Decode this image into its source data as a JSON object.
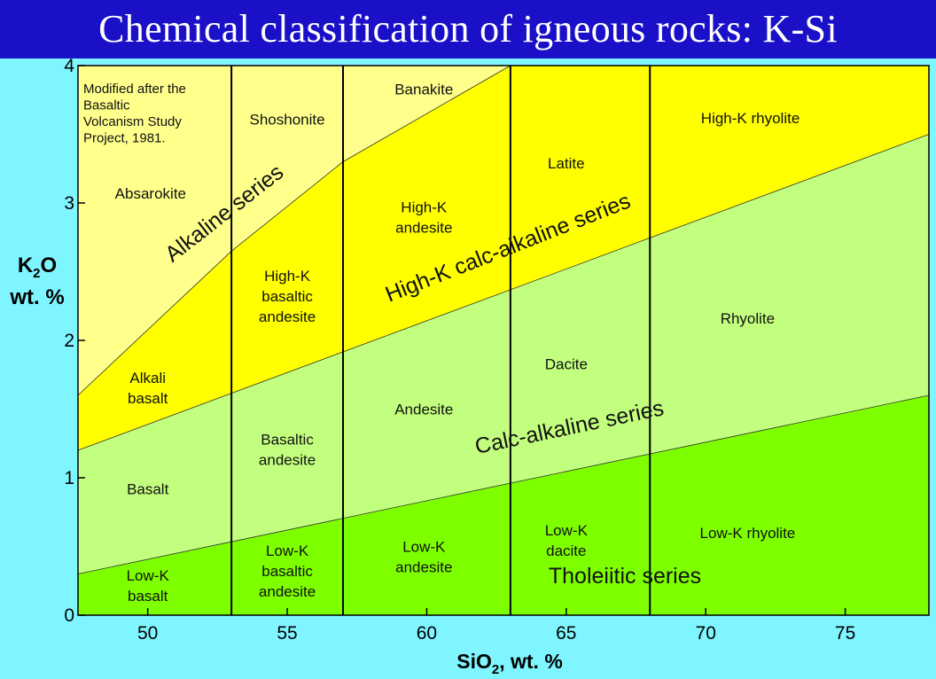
{
  "title": "Chemical classification of igneous rocks: K-Si",
  "x_axis": {
    "label_main": "SiO",
    "label_sub": "2",
    "label_tail": ", wt. %",
    "ticks": [
      "50",
      "55",
      "60",
      "65",
      "70",
      "75"
    ]
  },
  "y_axis": {
    "label_line1_main": "K",
    "label_line1_sub": "2",
    "label_line1_tail": "O",
    "label_line2": "wt. %",
    "ticks": [
      "0",
      "1",
      "2",
      "3",
      "4"
    ]
  },
  "note": [
    "Modified after the",
    "Basaltic",
    "Volcanism Study",
    "Project, 1981."
  ],
  "series_labels": {
    "alkaline": "Alkaline series",
    "high_k": "High-K calc-alkaline series",
    "calc_alkaline": "Calc-alkaline series",
    "tholeiitic": "Tholeiitic series"
  },
  "chart_data": {
    "type": "classification-diagram",
    "x_range": [
      47.5,
      78
    ],
    "y_range": [
      0,
      4
    ],
    "vertical_dividers_sio2": [
      53,
      57,
      63,
      68
    ],
    "boundaries": {
      "low_k_medium_k": [
        [
          47.5,
          0.3
        ],
        [
          78,
          1.6
        ]
      ],
      "medium_k_high_k": [
        [
          47.5,
          1.2
        ],
        [
          78,
          3.5
        ]
      ],
      "high_k_shoshonite": [
        [
          47.5,
          1.6
        ],
        [
          53,
          2.65
        ],
        [
          57,
          3.3
        ],
        [
          63,
          4.0
        ]
      ]
    },
    "colors": {
      "low_k": "#7eff00",
      "medium_k": "#c3ff7e",
      "high_k": "#ffff00",
      "shoshonite": "#ffff8c",
      "title_bar": "#1a10c8",
      "background": "#7ff5ff"
    },
    "fields": {
      "absarokite": [
        "Absarokite"
      ],
      "alkali_basalt": [
        "Alkali",
        "basalt"
      ],
      "basalt": [
        "Basalt"
      ],
      "low_k_basalt": [
        "Low-K",
        "basalt"
      ],
      "shoshonite": [
        "Shoshonite"
      ],
      "hk_basaltic_andesite": [
        "High-K",
        "basaltic",
        "andesite"
      ],
      "basaltic_andesite": [
        "Basaltic",
        "andesite"
      ],
      "lk_basaltic_andesite": [
        "Low-K",
        "basaltic",
        "andesite"
      ],
      "banakite": [
        "Banakite"
      ],
      "hk_andesite": [
        "High-K",
        "andesite"
      ],
      "andesite": [
        "Andesite"
      ],
      "lk_andesite": [
        "Low-K",
        "andesite"
      ],
      "latite": [
        "Latite"
      ],
      "dacite": [
        "Dacite"
      ],
      "lk_dacite": [
        "Low-K",
        "dacite"
      ],
      "hk_rhyolite": [
        "High-K rhyolite"
      ],
      "rhyolite": [
        "Rhyolite"
      ],
      "lk_rhyolite": [
        "Low-K rhyolite"
      ]
    }
  }
}
